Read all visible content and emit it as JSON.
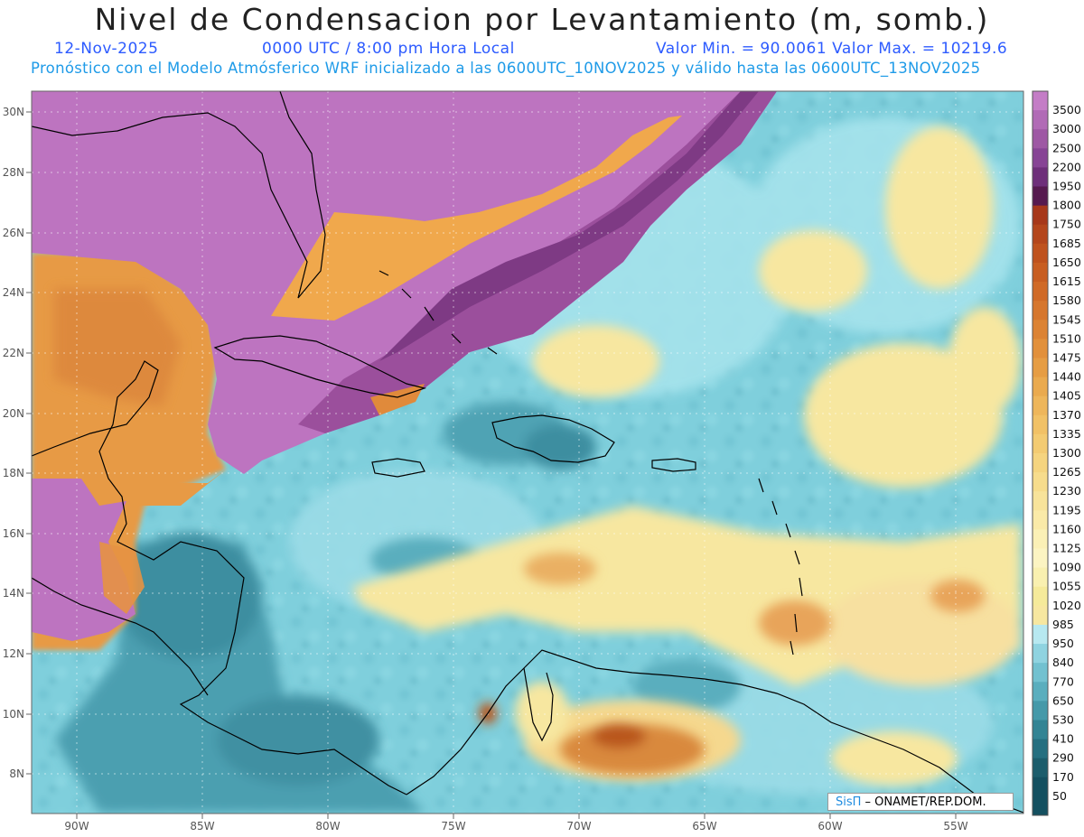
{
  "title": "Nivel de Condensacion por Levantamiento (m, somb.)",
  "header": {
    "date": "12-Nov-2025",
    "time": "0000 UTC / 8:00 pm Hora Local",
    "min_max": "Valor Min. = 90.0061   Valor Max. = 10219.6",
    "model_note": "Pronóstico con el Modelo Atmósferico WRF inicializado a las 0600UTC_10NOV2025 y válido hasta las  0600UTC_13NOV2025"
  },
  "latitude_labels": [
    "30N",
    "28N",
    "26N",
    "24N",
    "22N",
    "20N",
    "18N",
    "16N",
    "14N",
    "12N",
    "10N",
    "8N"
  ],
  "longitude_labels": [
    "90W",
    "85W",
    "80W",
    "75W",
    "70W",
    "65W",
    "60W",
    "55W"
  ],
  "colorbar": {
    "levels": [
      "3500",
      "3000",
      "2500",
      "2200",
      "1950",
      "1800",
      "1750",
      "1685",
      "1650",
      "1615",
      "1580",
      "1545",
      "1510",
      "1475",
      "1440",
      "1405",
      "1370",
      "1335",
      "1300",
      "1265",
      "1230",
      "1195",
      "1160",
      "1125",
      "1090",
      "1055",
      "1020",
      "985",
      "950",
      "840",
      "770",
      "650",
      "530",
      "410",
      "290",
      "170",
      "50"
    ],
    "colors": [
      "#c47dc6",
      "#b16bb6",
      "#9e58a4",
      "#874495",
      "#6e2f7a",
      "#561a4f",
      "#a7381a",
      "#b4461c",
      "#bf521e",
      "#c85e22",
      "#d06a27",
      "#d6762d",
      "#dc8334",
      "#e2903b",
      "#e69d44",
      "#ea aa4f",
      "#eeb65b",
      "#f1c166",
      "#f3cb72",
      "#f5d47f",
      "#f7dc8c",
      "#f8e39a",
      "#faeaa8",
      "#fbf0b6",
      "#fcf4c2",
      "#f9f0b0",
      "#f5ea9a",
      "#b7e8f0",
      "#8fd3e0",
      "#72c1d0",
      "#5aaebe",
      "#4599a9",
      "#338494",
      "#256f80",
      "#1c5d6c"
    ],
    "labels_shown": [
      "3500",
      "3000",
      "2500",
      "2200",
      "1950",
      "1800",
      "1750",
      "1685",
      "1650",
      "1615",
      "1580",
      "1545",
      "1510",
      "1475",
      "1440",
      "1405",
      "1370",
      "1335",
      "1300",
      "1265",
      "1230",
      "1195",
      "1160",
      "1125",
      "1090",
      "1055",
      "1020",
      "985",
      "950",
      "840",
      "770",
      "650",
      "530",
      "410",
      "290",
      "170",
      "50"
    ]
  },
  "credit": {
    "brand": "SisΠ",
    "text": " – ONAMET/REP.DOM."
  }
}
